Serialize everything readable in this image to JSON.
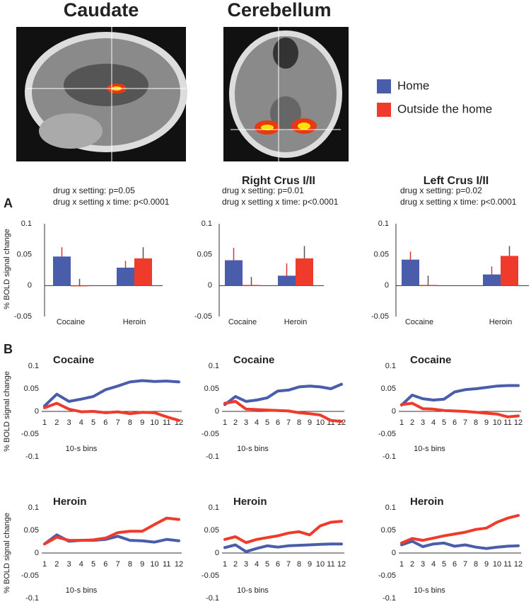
{
  "images": [
    {
      "title": "Caudate"
    },
    {
      "title": "Cerebellum"
    }
  ],
  "legend": [
    {
      "name": "Home",
      "color": "#4a5daa"
    },
    {
      "name": "Outside the home",
      "color": "#ef3b2c"
    }
  ],
  "panels": [
    "A",
    "B"
  ],
  "chart_data": [
    {
      "type": "bar",
      "annotations": [
        "drug x setting: p=0.05",
        "drug x setting x time: p<0.0001"
      ],
      "ylabel": "% BOLD signal change",
      "categories": [
        "Cocaine",
        "Heroin"
      ],
      "series": [
        {
          "values": [
            0.047,
            0.029
          ],
          "errors": [
            0.015,
            0.011
          ]
        },
        {
          "values": [
            -0.001,
            0.044
          ],
          "errors": [
            0.012,
            0.018
          ]
        }
      ],
      "ylim": [
        -0.05,
        0.1
      ],
      "yticks": [
        -0.05,
        0,
        0.05,
        0.1
      ]
    },
    {
      "type": "bar",
      "title": "Right Crus I/II",
      "annotations": [
        "drug x setting: p=0.01",
        "drug x setting x time: p<0.0001"
      ],
      "categories": [
        "Cocaine",
        "Heroin"
      ],
      "series": [
        {
          "values": [
            0.041,
            0.016
          ],
          "errors": [
            0.02,
            0.02
          ]
        },
        {
          "values": [
            0.001,
            0.044
          ],
          "errors": [
            0.013,
            0.02
          ]
        }
      ],
      "ylim": [
        -0.05,
        0.1
      ],
      "yticks": [
        -0.05,
        0,
        0.05,
        0.1
      ]
    },
    {
      "type": "bar",
      "title": "Left Crus I/II",
      "annotations": [
        "drug x setting: p=0.02",
        "drug x setting x time: p<0.0001"
      ],
      "categories": [
        "Cocaine",
        "Heroin"
      ],
      "series": [
        {
          "values": [
            0.042,
            0.018
          ],
          "errors": [
            0.013,
            0.013
          ]
        },
        {
          "values": [
            0.001,
            0.048
          ],
          "errors": [
            0.015,
            0.016
          ]
        }
      ],
      "ylim": [
        -0.05,
        0.1
      ],
      "yticks": [
        -0.05,
        0,
        0.05,
        0.1
      ]
    },
    {
      "type": "line",
      "title": "Cocaine",
      "xlabel": "10-s bins",
      "ylabel": "% BOLD signal change",
      "categories": [
        "1",
        "2",
        "3",
        "4",
        "5",
        "6",
        "7",
        "8",
        "9",
        "10",
        "11",
        "12"
      ],
      "series": [
        {
          "values": [
            0.012,
            0.038,
            0.022,
            0.027,
            0.033,
            0.048,
            0.056,
            0.065,
            0.068,
            0.066,
            0.067,
            0.065
          ]
        },
        {
          "values": [
            0.008,
            0.018,
            0.005,
            -0.001,
            0.0,
            -0.003,
            -0.001,
            -0.005,
            -0.002,
            -0.003,
            -0.012,
            -0.02
          ]
        }
      ],
      "ylim": [
        -0.1,
        0.1
      ],
      "yticks": [
        -0.1,
        -0.05,
        0,
        0.05,
        0.1
      ]
    },
    {
      "type": "line",
      "title": "Cocaine",
      "xlabel": "10-s bins",
      "categories": [
        "1",
        "2",
        "3",
        "4",
        "5",
        "6",
        "7",
        "8",
        "9",
        "10",
        "11",
        "12"
      ],
      "series": [
        {
          "values": [
            0.015,
            0.033,
            0.022,
            0.025,
            0.03,
            0.045,
            0.047,
            0.054,
            0.056,
            0.054,
            0.05,
            0.06
          ]
        },
        {
          "values": [
            0.018,
            0.022,
            0.005,
            0.004,
            0.003,
            0.002,
            0.001,
            -0.003,
            -0.005,
            -0.008,
            -0.02,
            -0.022
          ]
        }
      ],
      "ylim": [
        -0.1,
        0.1
      ],
      "yticks": [
        -0.1,
        -0.05,
        0,
        0.05,
        0.1
      ]
    },
    {
      "type": "line",
      "title": "Cocaine",
      "xlabel": "10-s bins",
      "categories": [
        "1",
        "2",
        "3",
        "4",
        "5",
        "6",
        "7",
        "8",
        "9",
        "10",
        "11",
        "12"
      ],
      "series": [
        {
          "values": [
            0.014,
            0.036,
            0.028,
            0.025,
            0.027,
            0.043,
            0.048,
            0.05,
            0.053,
            0.056,
            0.057,
            0.057
          ]
        },
        {
          "values": [
            0.015,
            0.018,
            0.006,
            0.005,
            0.002,
            0.001,
            0.0,
            -0.002,
            -0.004,
            -0.006,
            -0.012,
            -0.01
          ]
        }
      ],
      "ylim": [
        -0.1,
        0.1
      ],
      "yticks": [
        -0.1,
        -0.05,
        0,
        0.05,
        0.1
      ]
    },
    {
      "type": "line",
      "title": "Heroin",
      "xlabel": "10-s bins",
      "ylabel": "% BOLD signal change",
      "categories": [
        "1",
        "2",
        "3",
        "4",
        "5",
        "6",
        "7",
        "8",
        "9",
        "10",
        "11",
        "12"
      ],
      "series": [
        {
          "values": [
            0.02,
            0.04,
            0.026,
            0.028,
            0.028,
            0.03,
            0.037,
            0.028,
            0.027,
            0.024,
            0.03,
            0.027
          ]
        },
        {
          "values": [
            0.02,
            0.035,
            0.028,
            0.028,
            0.029,
            0.033,
            0.045,
            0.048,
            0.048,
            0.063,
            0.077,
            0.074
          ]
        }
      ],
      "ylim": [
        -0.1,
        0.1
      ],
      "yticks": [
        -0.1,
        -0.05,
        0,
        0.05,
        0.1
      ]
    },
    {
      "type": "line",
      "title": "Heroin",
      "xlabel": "10-s bins",
      "categories": [
        "1",
        "2",
        "3",
        "4",
        "5",
        "6",
        "7",
        "8",
        "9",
        "10",
        "11",
        "12"
      ],
      "series": [
        {
          "values": [
            0.012,
            0.018,
            0.003,
            0.01,
            0.016,
            0.013,
            0.016,
            0.017,
            0.018,
            0.019,
            0.02,
            0.02
          ]
        },
        {
          "values": [
            0.03,
            0.036,
            0.023,
            0.03,
            0.034,
            0.038,
            0.044,
            0.047,
            0.04,
            0.06,
            0.068,
            0.07
          ]
        }
      ],
      "ylim": [
        -0.1,
        0.1
      ],
      "yticks": [
        -0.1,
        -0.05,
        0,
        0.05,
        0.1
      ]
    },
    {
      "type": "line",
      "title": "Heroin",
      "xlabel": "10-s bins",
      "categories": [
        "1",
        "2",
        "3",
        "4",
        "5",
        "6",
        "7",
        "8",
        "9",
        "10",
        "11",
        "12"
      ],
      "series": [
        {
          "values": [
            0.018,
            0.026,
            0.014,
            0.02,
            0.022,
            0.015,
            0.018,
            0.013,
            0.01,
            0.013,
            0.015,
            0.016
          ]
        },
        {
          "values": [
            0.022,
            0.032,
            0.028,
            0.033,
            0.038,
            0.042,
            0.046,
            0.052,
            0.055,
            0.068,
            0.077,
            0.083
          ]
        }
      ],
      "ylim": [
        -0.1,
        0.1
      ],
      "yticks": [
        -0.1,
        -0.05,
        0,
        0.05,
        0.1
      ]
    }
  ]
}
